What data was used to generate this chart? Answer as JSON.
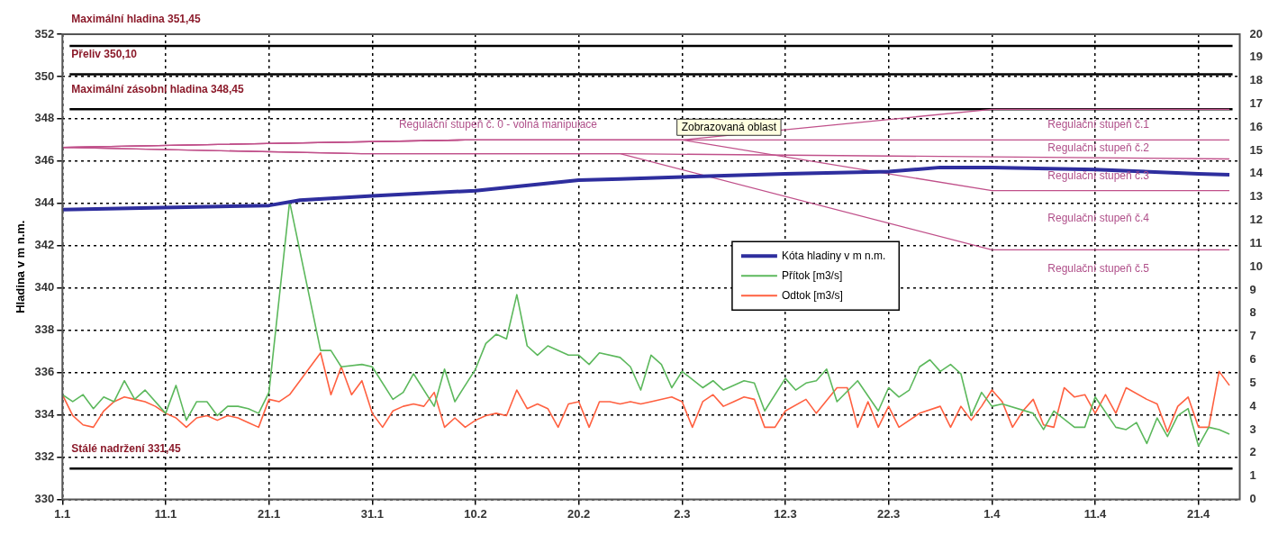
{
  "chart_data": {
    "type": "line",
    "ylabel": "Hladina v m n.m.",
    "xlim": [
      "--01-01",
      "--04-25"
    ],
    "xticks": [
      {
        "value": "--01-01",
        "label": "1.1"
      },
      {
        "value": "--01-11",
        "label": "11.1"
      },
      {
        "value": "--01-21",
        "label": "21.1"
      },
      {
        "value": "--01-31",
        "label": "31.1"
      },
      {
        "value": "--02-10",
        "label": "10.2"
      },
      {
        "value": "--02-20",
        "label": "20.2"
      },
      {
        "value": "--03-02",
        "label": "2.3"
      },
      {
        "value": "--03-12",
        "label": "12.3"
      },
      {
        "value": "--03-22",
        "label": "22.3"
      },
      {
        "value": "--04-01",
        "label": "1.4"
      },
      {
        "value": "--04-11",
        "label": "11.4"
      },
      {
        "value": "--04-21",
        "label": "21.4"
      }
    ],
    "ylim": [
      330,
      352
    ],
    "yticks": [
      330,
      332,
      334,
      336,
      338,
      340,
      342,
      344,
      346,
      348,
      350,
      352
    ],
    "y2lim": [
      0,
      20
    ],
    "y2ticks": [
      0,
      1,
      2,
      3,
      4,
      5,
      6,
      7,
      8,
      9,
      10,
      11,
      12,
      13,
      14,
      15,
      16,
      17,
      18,
      19,
      20
    ],
    "grid": true,
    "legend": "center",
    "series": [
      {
        "type": "line",
        "color": "#c0508a",
        "x": [
          "--01-01",
          "--02-09",
          "--03-02",
          "--04-01",
          "--04-24"
        ],
        "values": [
          346.65,
          347.0,
          347.0,
          348.45,
          348.45
        ]
      },
      {
        "type": "line",
        "color": "#c0508a",
        "x": [
          "--01-01",
          "--02-09",
          "--03-02",
          "--04-24"
        ],
        "values": [
          346.65,
          347.0,
          347.0,
          347.0
        ]
      },
      {
        "type": "line",
        "color": "#c0508a",
        "x": [
          "--01-01",
          "--01-30",
          "--02-24",
          "--04-24"
        ],
        "values": [
          346.65,
          346.35,
          346.35,
          346.1
        ]
      },
      {
        "type": "line",
        "color": "#c0508a",
        "x": [
          "--01-01",
          "--02-09",
          "--03-02",
          "--04-01",
          "--04-24"
        ],
        "values": [
          346.65,
          347.0,
          347.0,
          344.6,
          344.6
        ]
      },
      {
        "type": "line",
        "color": "#c0508a",
        "x": [
          "--01-01",
          "--01-30",
          "--02-24",
          "--04-01",
          "--04-24"
        ],
        "values": [
          346.65,
          346.35,
          346.35,
          341.8,
          341.8
        ]
      },
      {
        "type": "line",
        "name": "Kóta hladiny v m n.m.",
        "color": "#2e2e9e",
        "x": [
          "--01-01",
          "--01-21",
          "--01-24",
          "--01-31",
          "--02-10",
          "--02-20",
          "--02-24",
          "--03-02",
          "--03-12",
          "--03-22",
          "--03-27",
          "--04-01",
          "--04-11",
          "--04-21",
          "--04-24"
        ],
        "values": [
          343.7,
          343.9,
          344.15,
          344.35,
          344.6,
          345.1,
          345.15,
          345.25,
          345.4,
          345.5,
          345.7,
          345.7,
          345.6,
          345.4,
          345.35
        ]
      },
      {
        "type": "line",
        "name": "Přítok [m3/s]",
        "color": "#5cb85c",
        "axis": "y2",
        "x": [
          "--01-01",
          "--01-02",
          "--01-03",
          "--01-04",
          "--01-05",
          "--01-06",
          "--01-07",
          "--01-08",
          "--01-09",
          "--01-11",
          "--01-12",
          "--01-13",
          "--01-14",
          "--01-15",
          "--01-16",
          "--01-17",
          "--01-18",
          "--01-19",
          "--01-20",
          "--01-21",
          "--01-23",
          "--01-26",
          "--01-27",
          "--01-28",
          "--01-30",
          "--01-31",
          "--02-02",
          "--02-03",
          "--02-04",
          "--02-06",
          "--02-07",
          "--02-08",
          "--02-10",
          "--02-11",
          "--02-12",
          "--02-13",
          "--02-14",
          "--02-15",
          "--02-16",
          "--02-17",
          "--02-19",
          "--02-20",
          "--02-21",
          "--02-22",
          "--02-24",
          "--02-25",
          "--02-26",
          "--02-27",
          "--02-28",
          "--03-01",
          "--03-02",
          "--03-04",
          "--03-05",
          "--03-06",
          "--03-08",
          "--03-09",
          "--03-10",
          "--03-12",
          "--03-13",
          "--03-14",
          "--03-15",
          "--03-16",
          "--03-17",
          "--03-19",
          "--03-21",
          "--03-22",
          "--03-23",
          "--03-24",
          "--03-25",
          "--03-26",
          "--03-27",
          "--03-28",
          "--03-29",
          "--03-30",
          "--03-31",
          "--04-01",
          "--04-02",
          "--04-05",
          "--04-06",
          "--04-07",
          "--04-09",
          "--04-10",
          "--04-11",
          "--04-13",
          "--04-14",
          "--04-15",
          "--04-16",
          "--04-17",
          "--04-18",
          "--04-19",
          "--04-20",
          "--04-21",
          "--04-22",
          "--04-23",
          "--04-24"
        ],
        "values": [
          4.5,
          4.2,
          4.5,
          3.9,
          4.4,
          4.2,
          5.1,
          4.3,
          4.7,
          3.7,
          4.9,
          3.4,
          4.2,
          4.2,
          3.6,
          4.0,
          4.0,
          3.9,
          3.7,
          4.6,
          12.8,
          6.4,
          6.4,
          5.7,
          5.8,
          5.7,
          4.3,
          4.6,
          5.4,
          4.0,
          5.6,
          4.2,
          5.6,
          6.7,
          7.1,
          6.9,
          8.8,
          6.6,
          6.2,
          6.6,
          6.2,
          6.2,
          5.8,
          6.3,
          6.1,
          5.7,
          4.7,
          6.2,
          5.8,
          4.8,
          5.5,
          4.8,
          5.1,
          4.7,
          5.1,
          5.0,
          3.8,
          5.2,
          4.7,
          5.0,
          5.1,
          5.6,
          4.2,
          5.1,
          3.8,
          4.8,
          4.4,
          4.7,
          5.7,
          6.0,
          5.5,
          5.8,
          5.4,
          3.6,
          4.6,
          4.0,
          4.1,
          3.7,
          3.0,
          3.8,
          3.1,
          3.1,
          4.4,
          3.1,
          3.0,
          3.3,
          2.4,
          3.5,
          2.7,
          3.6,
          3.9,
          2.3,
          3.1,
          3.0,
          2.8
        ]
      },
      {
        "type": "line",
        "name": "Odtok [m3/s]",
        "color": "#ff6040",
        "axis": "y2",
        "x": [
          "--01-01",
          "--01-02",
          "--01-03",
          "--01-04",
          "--01-05",
          "--01-06",
          "--01-07",
          "--01-08",
          "--01-09",
          "--01-10",
          "--01-11",
          "--01-12",
          "--01-13",
          "--01-14",
          "--01-15",
          "--01-16",
          "--01-17",
          "--01-18",
          "--01-19",
          "--01-20",
          "--01-21",
          "--01-22",
          "--01-23",
          "--01-24",
          "--01-26",
          "--01-27",
          "--01-28",
          "--01-29",
          "--01-30",
          "--01-31",
          "--02-01",
          "--02-02",
          "--02-03",
          "--02-04",
          "--02-05",
          "--02-06",
          "--02-07",
          "--02-08",
          "--02-09",
          "--02-10",
          "--02-11",
          "--02-12",
          "--02-13",
          "--02-14",
          "--02-15",
          "--02-16",
          "--02-17",
          "--02-18",
          "--02-19",
          "--02-20",
          "--02-21",
          "--02-22",
          "--02-23",
          "--02-24",
          "--02-25",
          "--02-26",
          "--02-27",
          "--03-01",
          "--03-02",
          "--03-03",
          "--03-04",
          "--03-05",
          "--03-06",
          "--03-07",
          "--03-08",
          "--03-09",
          "--03-10",
          "--03-11",
          "--03-12",
          "--03-14",
          "--03-15",
          "--03-17",
          "--03-18",
          "--03-19",
          "--03-20",
          "--03-21",
          "--03-22",
          "--03-23",
          "--03-25",
          "--03-27",
          "--03-28",
          "--03-29",
          "--03-30",
          "--03-31",
          "--04-01",
          "--04-02",
          "--04-03",
          "--04-04",
          "--04-05",
          "--04-06",
          "--04-07",
          "--04-08",
          "--04-09",
          "--04-10",
          "--04-11",
          "--04-12",
          "--04-13",
          "--04-14",
          "--04-16",
          "--04-17",
          "--04-18",
          "--04-19",
          "--04-20",
          "--04-21",
          "--04-22",
          "--04-23",
          "--04-24"
        ],
        "values": [
          4.5,
          3.6,
          3.2,
          3.1,
          3.8,
          4.2,
          4.4,
          4.3,
          4.2,
          4.0,
          3.7,
          3.5,
          3.1,
          3.5,
          3.6,
          3.4,
          3.6,
          3.5,
          3.3,
          3.1,
          4.3,
          4.2,
          4.5,
          5.1,
          6.3,
          4.5,
          5.7,
          4.5,
          5.1,
          3.7,
          3.1,
          3.8,
          4.0,
          4.1,
          4.0,
          4.6,
          3.1,
          3.5,
          3.1,
          3.4,
          3.6,
          3.7,
          3.6,
          4.7,
          3.9,
          4.1,
          3.9,
          3.1,
          4.1,
          4.2,
          3.1,
          4.2,
          4.2,
          4.1,
          4.2,
          4.1,
          4.2,
          4.4,
          4.2,
          3.1,
          4.2,
          4.5,
          4.0,
          4.2,
          4.4,
          4.3,
          3.1,
          3.1,
          3.8,
          4.3,
          3.7,
          4.8,
          4.8,
          3.1,
          4.2,
          3.1,
          4.0,
          3.1,
          3.7,
          4.0,
          3.1,
          4.0,
          3.4,
          4.0,
          4.7,
          4.2,
          3.1,
          3.8,
          4.3,
          3.2,
          3.1,
          4.8,
          4.4,
          4.5,
          3.7,
          4.5,
          3.7,
          4.8,
          4.3,
          4.1,
          2.9,
          4.0,
          4.4,
          3.1,
          3.1,
          5.5,
          4.9
        ]
      }
    ],
    "ref_lines": [
      {
        "axis": "y",
        "value": 351.45,
        "label": "Maximální hladina 351,45",
        "color": "#000000"
      },
      {
        "axis": "y",
        "value": 350.1,
        "label": "Přeliv 350,10",
        "color": "#000000"
      },
      {
        "axis": "y",
        "value": 348.45,
        "label": "Maximální zásobní hladina 348,45",
        "color": "#000000"
      },
      {
        "axis": "y",
        "value": 331.45,
        "label": "Stálé nadržení 331,45",
        "color": "#000000"
      }
    ],
    "annotations": [
      "Regulační stupeň č. 0 - volná manipulace",
      "Zobrazovaná oblast",
      "Regulační stupeň č.1",
      "Regulační stupeň č.2",
      "Regulační stupeň č.3",
      "Regulační stupeň č.4",
      "Regulační stupeň č.5"
    ]
  }
}
